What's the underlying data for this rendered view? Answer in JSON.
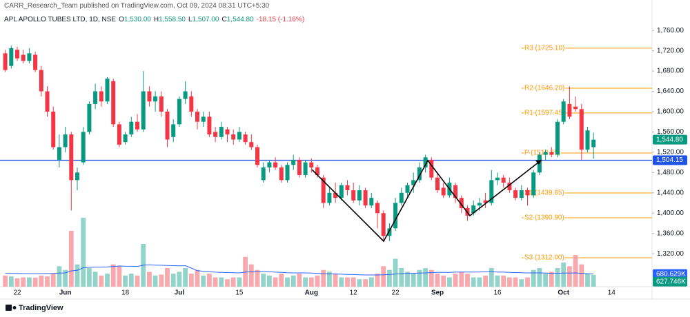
{
  "header": {
    "byline": "CARR_Research_Team published on TradingView.com, Oct 09, 2024 08:31 UTC+5:30",
    "symbol": "APL APOLLO TUBES LTD, 1D, NSE",
    "quote": [
      {
        "key": "O",
        "value": "1,530.00"
      },
      {
        "key": "H",
        "value": "1,558.50"
      },
      {
        "key": "L",
        "value": "1,507.00"
      },
      {
        "key": "C",
        "value": "1,544.80"
      }
    ],
    "change": "-18.15 (-1.16%)"
  },
  "footer": {
    "brand": "TradingView"
  },
  "chart_data": {
    "type": "candlestick",
    "up_color": "#089981",
    "down_color": "#f23645",
    "volume_up_color": "#92d3ca",
    "volume_down_color": "#f8a9ad",
    "ma_color": "#2962ff",
    "pivot_color": "#ff9800",
    "grid": false,
    "ylim": [
      1255,
      1820
    ],
    "yticks": [
      {
        "value": 1320,
        "label": "1,320.00"
      },
      {
        "value": 1360,
        "label": "1,360.00"
      },
      {
        "value": 1400,
        "label": "1,400.00"
      },
      {
        "value": 1440,
        "label": "1,440.00"
      },
      {
        "value": 1480,
        "label": "1,480.00"
      },
      {
        "value": 1520,
        "label": "1,520.00"
      },
      {
        "value": 1560,
        "label": "1,560.00"
      },
      {
        "value": 1600,
        "label": "1,600.00"
      },
      {
        "value": 1640,
        "label": "1,640.00"
      },
      {
        "value": 1680,
        "label": "1,680.00"
      },
      {
        "value": 1720,
        "label": "1,720.00"
      },
      {
        "value": 1760,
        "label": "1,760.00"
      }
    ],
    "vlim": [
      0,
      10000000
    ],
    "categories": [
      null,
      null,
      "22",
      null,
      null,
      null,
      null,
      null,
      null,
      null,
      "Jun",
      null,
      null,
      null,
      null,
      null,
      null,
      null,
      null,
      null,
      "18",
      null,
      null,
      null,
      null,
      null,
      null,
      null,
      null,
      "Jul",
      null,
      null,
      null,
      null,
      null,
      null,
      null,
      null,
      null,
      "15",
      null,
      null,
      null,
      null,
      null,
      null,
      null,
      null,
      null,
      null,
      null,
      "Aug",
      null,
      null,
      null,
      null,
      null,
      null,
      "12",
      null,
      null,
      null,
      null,
      null,
      null,
      "22",
      null,
      null,
      null,
      null,
      null,
      null,
      "Sep",
      null,
      null,
      null,
      null,
      null,
      null,
      null,
      null,
      null,
      "16",
      null,
      null,
      null,
      null,
      null,
      null,
      null,
      null,
      null,
      null,
      "Oct",
      null,
      null,
      null,
      null,
      null,
      null,
      null,
      "14"
    ],
    "open": [
      1715,
      1690,
      1722,
      1712,
      1700,
      1712,
      1682,
      1640,
      1600,
      1505,
      1530,
      1555,
      1465,
      1500,
      1560,
      1615,
      1640,
      1620,
      1660,
      1575,
      1540,
      1555,
      1580,
      1565,
      1640,
      1620,
      1630,
      1600,
      1550,
      1575,
      1625,
      1630,
      1600,
      1580,
      1590,
      1560,
      1550,
      1565,
      1555,
      1545,
      1555,
      1540,
      1530,
      1465,
      1490,
      1500,
      1490,
      1465,
      1495,
      1505,
      1475,
      1500,
      1490,
      1470,
      1420,
      1440,
      1430,
      1455,
      1445,
      1425,
      1445,
      1415,
      1420,
      1400,
      1355,
      1370,
      1420,
      1440,
      1455,
      1465,
      1490,
      1505,
      1470,
      1450,
      1435,
      1455,
      1430,
      1410,
      1400,
      1415,
      1425,
      1420,
      1465,
      1470,
      1460,
      1445,
      1430,
      1445,
      1435,
      1480,
      1515,
      1520,
      1515,
      1580,
      1615,
      1610,
      1605,
      1525,
      1530,
      null,
      null,
      null
    ],
    "high": [
      1722,
      1730,
      1728,
      1722,
      1725,
      1718,
      1690,
      1650,
      1610,
      1555,
      1570,
      1560,
      1490,
      1570,
      1620,
      1655,
      1650,
      1668,
      1665,
      1580,
      1560,
      1590,
      1595,
      1680,
      1650,
      1640,
      1640,
      1605,
      1585,
      1630,
      1660,
      1640,
      1605,
      1600,
      1600,
      1570,
      1580,
      1570,
      1565,
      1570,
      1560,
      1555,
      1535,
      1500,
      1505,
      1510,
      1495,
      1500,
      1515,
      1510,
      1505,
      1508,
      1495,
      1475,
      1450,
      1460,
      1460,
      1465,
      1460,
      1455,
      1450,
      1440,
      1425,
      1405,
      1380,
      1430,
      1450,
      1460,
      1480,
      1500,
      1515,
      1510,
      1480,
      1460,
      1470,
      1460,
      1435,
      1415,
      1425,
      1430,
      1440,
      1485,
      1480,
      1475,
      1470,
      1450,
      1455,
      1450,
      1485,
      1520,
      1525,
      1530,
      1585,
      1625,
      1650,
      1630,
      1615,
      1570,
      1558.5,
      null,
      null,
      null
    ],
    "low": [
      1678,
      1685,
      1700,
      1695,
      1695,
      1678,
      1630,
      1590,
      1525,
      1490,
      1520,
      1405,
      1445,
      1495,
      1555,
      1605,
      1610,
      1615,
      1570,
      1530,
      1535,
      1550,
      1560,
      1560,
      1610,
      1600,
      1590,
      1530,
      1540,
      1570,
      1615,
      1590,
      1565,
      1570,
      1550,
      1540,
      1545,
      1540,
      1535,
      1540,
      1535,
      1525,
      1490,
      1460,
      1480,
      1485,
      1460,
      1460,
      1485,
      1470,
      1470,
      1480,
      1470,
      1410,
      1415,
      1420,
      1425,
      1435,
      1420,
      1415,
      1410,
      1410,
      1370,
      1345,
      1345,
      1365,
      1415,
      1430,
      1440,
      1460,
      1480,
      1465,
      1440,
      1430,
      1430,
      1420,
      1400,
      1385,
      1395,
      1405,
      1410,
      1415,
      1455,
      1450,
      1440,
      1425,
      1425,
      1415,
      1430,
      1475,
      1505,
      1510,
      1510,
      1575,
      1585,
      1600,
      1505,
      1520,
      1507,
      null,
      null,
      null
    ],
    "close": [
      1682,
      1725,
      1705,
      1700,
      1715,
      1682,
      1640,
      1600,
      1530,
      1530,
      1555,
      1465,
      1480,
      1560,
      1615,
      1640,
      1620,
      1665,
      1575,
      1535,
      1555,
      1580,
      1565,
      1640,
      1620,
      1630,
      1600,
      1545,
      1575,
      1625,
      1640,
      1600,
      1580,
      1590,
      1555,
      1550,
      1570,
      1555,
      1545,
      1560,
      1540,
      1530,
      1495,
      1490,
      1500,
      1490,
      1465,
      1495,
      1505,
      1475,
      1500,
      1490,
      1475,
      1420,
      1440,
      1430,
      1455,
      1445,
      1425,
      1445,
      1415,
      1430,
      1400,
      1355,
      1370,
      1420,
      1440,
      1455,
      1465,
      1490,
      1510,
      1470,
      1445,
      1435,
      1460,
      1430,
      1410,
      1395,
      1415,
      1420,
      1420,
      1465,
      1470,
      1460,
      1445,
      1430,
      1445,
      1435,
      1480,
      1515,
      1520,
      1515,
      1580,
      1620,
      1590,
      1605,
      1525,
      1562.95,
      1544.8,
      null,
      null,
      null
    ],
    "volume": [
      600000,
      550000,
      450000,
      500000,
      500000,
      480000,
      600000,
      550000,
      700000,
      1100000,
      900000,
      3000000,
      1200000,
      3700000,
      1000000,
      800000,
      600000,
      700000,
      1200000,
      1100000,
      600000,
      700000,
      600000,
      2300000,
      800000,
      600000,
      650000,
      1000000,
      700000,
      800000,
      1000000,
      700000,
      900000,
      600000,
      700000,
      500000,
      500000,
      400000,
      500000,
      500000,
      1600000,
      1200000,
      900000,
      700000,
      600000,
      500000,
      700000,
      500000,
      600000,
      700000,
      500000,
      500000,
      600000,
      900000,
      800000,
      700000,
      500000,
      500000,
      500000,
      400000,
      400000,
      500000,
      700000,
      1100000,
      900000,
      1500000,
      1000000,
      800000,
      700000,
      900000,
      1000000,
      900000,
      700000,
      600000,
      500000,
      700000,
      800000,
      700000,
      500000,
      500000,
      600000,
      1000000,
      600000,
      600000,
      500000,
      500000,
      400000,
      500000,
      900000,
      1000000,
      700000,
      800000,
      1000000,
      1300000,
      1100000,
      1700000,
      1200000,
      700000,
      627746,
      null,
      null,
      null
    ],
    "volume_ma": [
      720000,
      715000,
      710000,
      705000,
      700000,
      700000,
      705000,
      705000,
      710000,
      730000,
      740000,
      850000,
      880000,
      1020000,
      1040000,
      1050000,
      1050000,
      1060000,
      1090000,
      1110000,
      1100000,
      1095000,
      1090000,
      1160000,
      1170000,
      1160000,
      1150000,
      1140000,
      1130000,
      1120000,
      1130000,
      1000000,
      860000,
      830000,
      800000,
      780000,
      770000,
      760000,
      750000,
      740000,
      780000,
      800000,
      810000,
      810000,
      800000,
      780000,
      770000,
      750000,
      740000,
      740000,
      740000,
      730000,
      720000,
      700000,
      690000,
      680000,
      670000,
      660000,
      650000,
      640000,
      630000,
      630000,
      630000,
      640000,
      650000,
      680000,
      700000,
      710000,
      720000,
      730000,
      740000,
      760000,
      770000,
      770000,
      770000,
      780000,
      790000,
      790000,
      790000,
      790000,
      800000,
      800000,
      790000,
      780000,
      770000,
      760000,
      750000,
      740000,
      740000,
      740000,
      730000,
      720000,
      720000,
      730000,
      730000,
      740000,
      720000,
      700000,
      680629,
      null,
      null,
      null
    ],
    "last_price": {
      "value": 1544.8,
      "label": "1,544.80"
    },
    "hline": {
      "value": 1504.15,
      "label": "1,504.15"
    },
    "volume_ma_last": {
      "value": 680629,
      "label": "680.629K"
    },
    "volume_last": {
      "value": 627746,
      "label": "627.746K"
    },
    "pivots": [
      {
        "label": "R3 (1725.10)",
        "value": 1725.1
      },
      {
        "label": "R2 (1646.20)",
        "value": 1646.2
      },
      {
        "label": "R1 (1597.45)",
        "value": 1597.45
      },
      {
        "label": "P (1518.55)",
        "value": 1518.55
      },
      {
        "label": "S1 (1439.65)",
        "value": 1439.65
      },
      {
        "label": "S2 (1390.90)",
        "value": 1390.9
      },
      {
        "label": "S3 (1312.00)",
        "value": 1312
      }
    ]
  }
}
